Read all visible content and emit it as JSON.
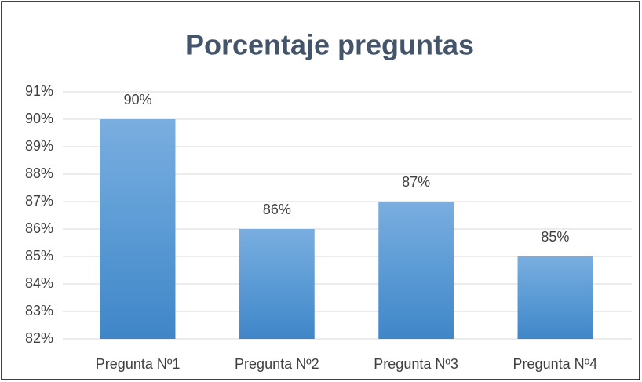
{
  "chart_data": {
    "type": "bar",
    "title": "Porcentaje preguntas",
    "categories": [
      "Pregunta Nº1",
      "Pregunta Nº2",
      "Pregunta Nº3",
      "Pregunta Nº4"
    ],
    "values": [
      90,
      86,
      87,
      85
    ],
    "value_labels": [
      "90%",
      "86%",
      "87%",
      "85%"
    ],
    "color": "#5b9bd5",
    "ylim": [
      82,
      91
    ],
    "yticks": [
      {
        "value": 82,
        "label": "82%"
      },
      {
        "value": 83,
        "label": "83%"
      },
      {
        "value": 84,
        "label": "84%"
      },
      {
        "value": 85,
        "label": "85%"
      },
      {
        "value": 86,
        "label": "86%"
      },
      {
        "value": 87,
        "label": "87%"
      },
      {
        "value": 88,
        "label": "88%"
      },
      {
        "value": 89,
        "label": "89%"
      },
      {
        "value": 90,
        "label": "90%"
      },
      {
        "value": 91,
        "label": "91%"
      }
    ],
    "grid": true
  }
}
